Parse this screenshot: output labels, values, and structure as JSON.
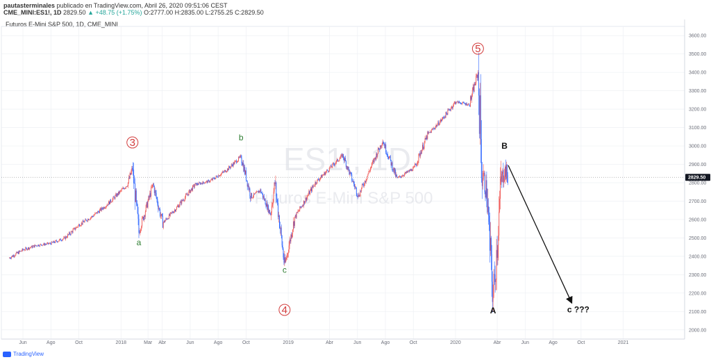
{
  "header": {
    "line1_user": "pautasterminales",
    "line1_rest": "publicado en TradingView.com, Abril 26, 2020 09:51:06 CEST",
    "line2_symbol": "CME_MINI:ES1!, 1D",
    "line2_price": "2829.50",
    "line2_change": "▲ +48.75 (+1.75%)",
    "line2_ohlc": "O:2777.00 H:2835.00 L:2755.25 C:2829.50"
  },
  "plot_title": "Futuros E-Mini S&P 500, 1D, CME_MINI",
  "watermark": {
    "symbol": "ES1!, 1D",
    "name": "Futuros E-Mini S&P 500"
  },
  "footer": {
    "brand": "TradingView"
  },
  "colors": {
    "up": "#ef5350",
    "down": "#2962ff",
    "wave_red": "#d23b3b",
    "wave_green": "#2e7d32",
    "grid": "#eef0f4"
  },
  "chart_data": {
    "type": "candlestick",
    "symbol": "CME_MINI:ES1!",
    "interval": "1D",
    "ylim": [
      1950,
      3650
    ],
    "y_ticks": [
      "3600.00",
      "3500.00",
      "3400.00",
      "3300.00",
      "3200.00",
      "3100.00",
      "3000.00",
      "2900.00",
      "2800.00",
      "2700.00",
      "2600.00",
      "2500.00",
      "2400.00",
      "2300.00",
      "2200.00",
      "2100.00",
      "2000.00"
    ],
    "x_ticks": [
      "Jun",
      "Ago",
      "Oct",
      "2018",
      "Mar",
      "Abr",
      "Jun",
      "Ago",
      "Oct",
      "2019",
      "Abr",
      "Jun",
      "Ago",
      "Oct",
      "2020",
      "Abr",
      "Jun",
      "Ago",
      "Oct",
      "2021"
    ],
    "last_price_label": "2829.50",
    "last_price": 2829.5,
    "price_path": [
      [
        "2017-05-01",
        2390
      ],
      [
        "2017-06-01",
        2435
      ],
      [
        "2017-07-01",
        2460
      ],
      [
        "2017-08-01",
        2470
      ],
      [
        "2017-09-01",
        2500
      ],
      [
        "2017-10-01",
        2570
      ],
      [
        "2017-11-01",
        2620
      ],
      [
        "2017-12-01",
        2680
      ],
      [
        "2018-01-15",
        2790
      ],
      [
        "2018-01-26",
        2878
      ],
      [
        "2018-02-09",
        2532
      ],
      [
        "2018-03-12",
        2790
      ],
      [
        "2018-04-02",
        2580
      ],
      [
        "2018-05-01",
        2660
      ],
      [
        "2018-06-12",
        2790
      ],
      [
        "2018-07-15",
        2810
      ],
      [
        "2018-08-20",
        2870
      ],
      [
        "2018-09-20",
        2942
      ],
      [
        "2018-10-12",
        2720
      ],
      [
        "2018-11-01",
        2760
      ],
      [
        "2018-11-23",
        2630
      ],
      [
        "2018-12-03",
        2800
      ],
      [
        "2018-12-24",
        2346
      ],
      [
        "2019-01-15",
        2610
      ],
      [
        "2019-03-01",
        2800
      ],
      [
        "2019-04-30",
        2950
      ],
      [
        "2019-06-03",
        2728
      ],
      [
        "2019-07-26",
        3030
      ],
      [
        "2019-08-26",
        2822
      ],
      [
        "2019-10-03",
        2880
      ],
      [
        "2019-11-01",
        3060
      ],
      [
        "2019-12-01",
        3140
      ],
      [
        "2020-01-01",
        3240
      ],
      [
        "2020-01-31",
        3225
      ],
      [
        "2020-02-19",
        3397
      ],
      [
        "2020-02-28",
        2855
      ],
      [
        "2020-03-09",
        2750
      ],
      [
        "2020-03-16",
        2450
      ],
      [
        "2020-03-23",
        2174
      ],
      [
        "2020-04-01",
        2470
      ],
      [
        "2020-04-09",
        2790
      ],
      [
        "2020-04-17",
        2875
      ],
      [
        "2020-04-24",
        2829.5
      ]
    ],
    "annotations": [
      {
        "label": "3",
        "style": "circled",
        "date": "2018-01-26",
        "price": 3000,
        "color": "#d23b3b"
      },
      {
        "label": "a",
        "date": "2018-02-09",
        "price": 2460,
        "color": "#2e7d32"
      },
      {
        "label": "b",
        "date": "2018-09-20",
        "price": 3030,
        "color": "#2e7d32"
      },
      {
        "label": "c",
        "date": "2018-12-24",
        "price": 2310,
        "color": "#2e7d32"
      },
      {
        "label": "4",
        "style": "circled",
        "date": "2018-12-24",
        "price": 2090,
        "color": "#d23b3b"
      },
      {
        "label": "5",
        "style": "circled",
        "date": "2020-02-19",
        "price": 3510,
        "color": "#d23b3b"
      },
      {
        "label": "B",
        "date": "2020-04-17",
        "price": 2985,
        "color": "#111111"
      },
      {
        "label": "A",
        "date": "2020-03-23",
        "price": 2090,
        "color": "#111111"
      },
      {
        "label": "c ???",
        "date": "2020-09-25",
        "price": 2095,
        "color": "#111111"
      }
    ],
    "arrow": {
      "from": {
        "date": "2020-04-25",
        "price": 2895
      },
      "to": {
        "date": "2020-09-10",
        "price": 2150
      }
    }
  }
}
